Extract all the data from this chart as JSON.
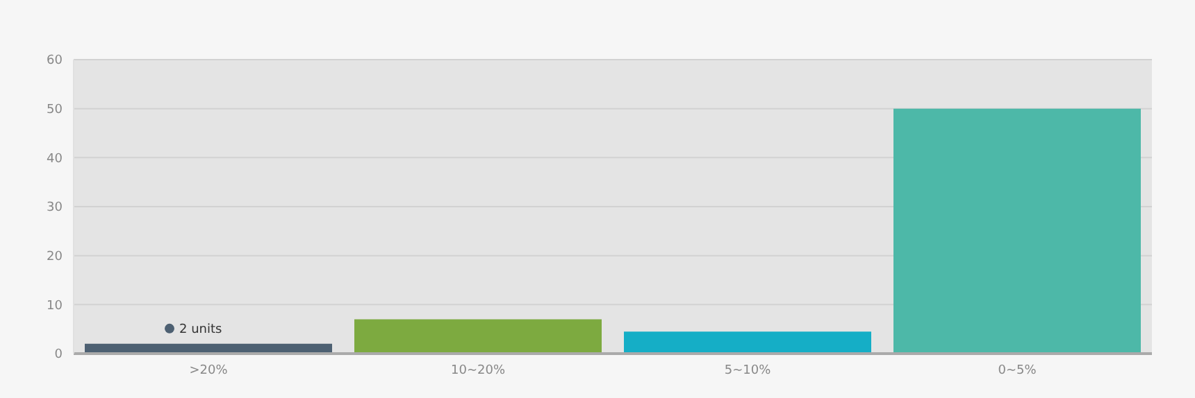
{
  "chart_data": {
    "type": "bar",
    "categories": [
      ">20%",
      "10~20%",
      "5~10%",
      "0~5%"
    ],
    "values": [
      2,
      7,
      4.5,
      50
    ],
    "colors": [
      "#4d6072",
      "#7daa40",
      "#15aec6",
      "#4db8a8"
    ],
    "value_labels": [
      "2 units",
      null,
      null,
      null
    ],
    "ylim": [
      0,
      60
    ],
    "yticks": [
      0,
      10,
      20,
      30,
      40,
      50,
      60
    ],
    "grid": "y"
  }
}
